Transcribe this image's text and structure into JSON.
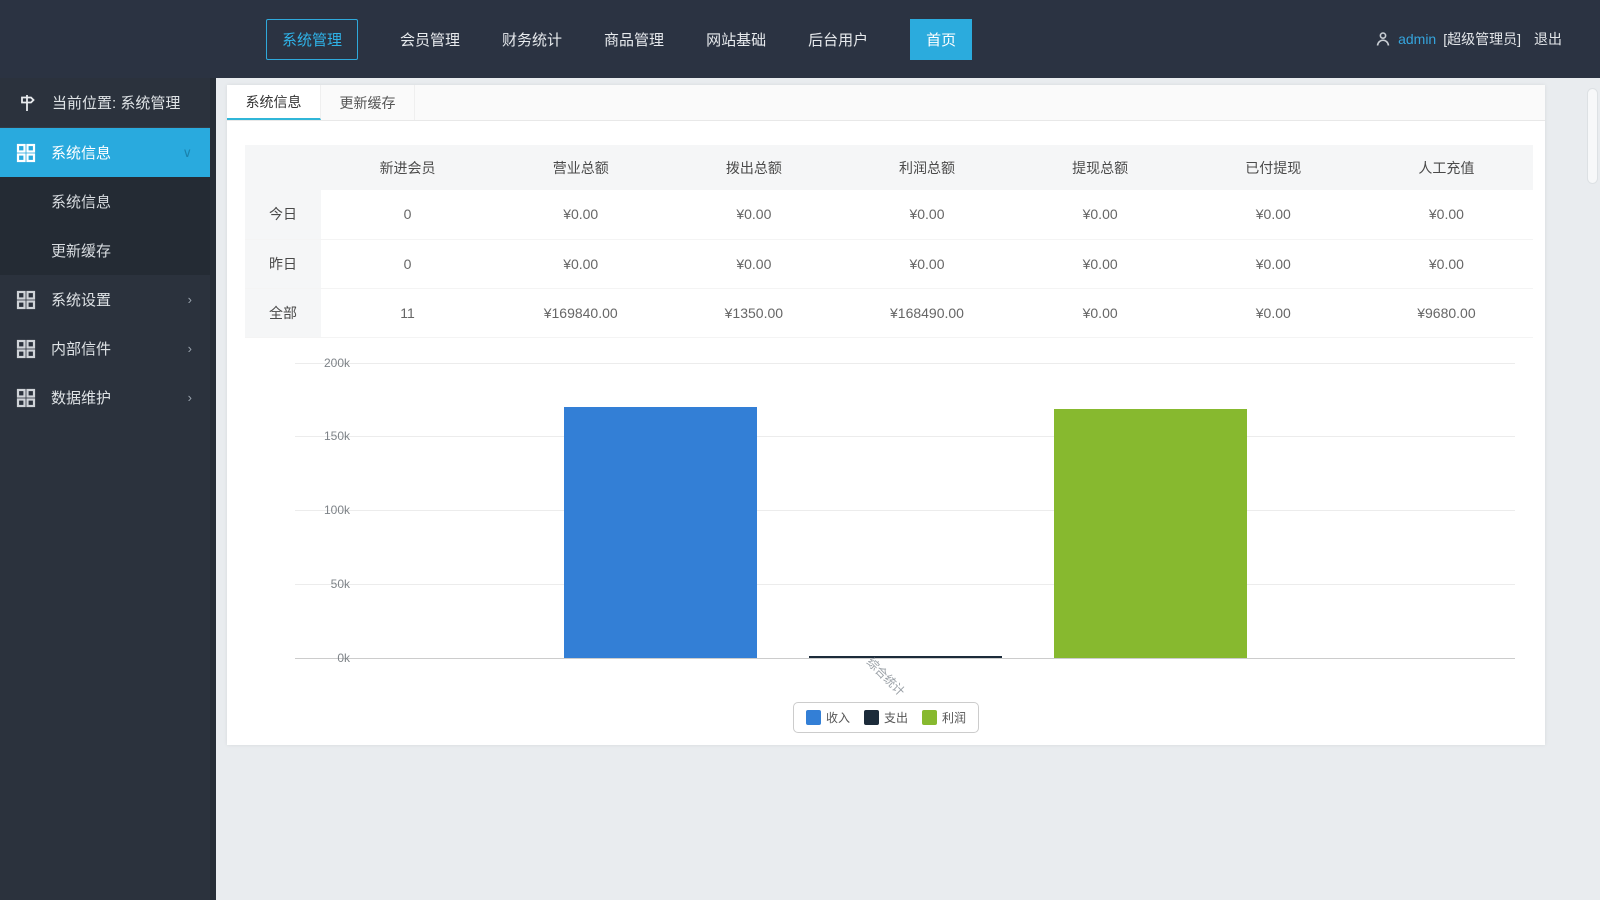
{
  "navbar": {
    "items": [
      {
        "label": "系统管理",
        "active": true
      },
      {
        "label": "会员管理"
      },
      {
        "label": "财务统计"
      },
      {
        "label": "商品管理"
      },
      {
        "label": "网站基础"
      },
      {
        "label": "后台用户"
      }
    ],
    "home_button": "首页",
    "user": {
      "name": "admin",
      "role": "[超级管理员]",
      "logout": "退出"
    }
  },
  "sidebar": {
    "location_label": "当前位置: 系统管理",
    "groups": [
      {
        "label": "系统信息",
        "expanded": true,
        "children": [
          "系统信息",
          "更新缓存"
        ]
      },
      {
        "label": "系统设置"
      },
      {
        "label": "内部信件"
      },
      {
        "label": "数据维护"
      }
    ]
  },
  "main": {
    "tabs": [
      "系统信息",
      "更新缓存"
    ]
  },
  "table": {
    "headers": [
      "新进会员",
      "营业总额",
      "拨出总额",
      "利润总额",
      "提现总额",
      "已付提现",
      "人工充值"
    ],
    "rows": [
      {
        "label": "今日",
        "cells": [
          "0",
          "¥0.00",
          "¥0.00",
          "¥0.00",
          "¥0.00",
          "¥0.00",
          "¥0.00"
        ]
      },
      {
        "label": "昨日",
        "cells": [
          "0",
          "¥0.00",
          "¥0.00",
          "¥0.00",
          "¥0.00",
          "¥0.00",
          "¥0.00"
        ]
      },
      {
        "label": "全部",
        "cells": [
          "11",
          "¥169840.00",
          "¥1350.00",
          "¥168490.00",
          "¥0.00",
          "¥0.00",
          "¥9680.00"
        ]
      }
    ]
  },
  "chart_data": {
    "type": "bar",
    "categories": [
      "综合统计"
    ],
    "series": [
      {
        "name": "收入",
        "values": [
          169840
        ],
        "color": "#337fd6"
      },
      {
        "name": "支出",
        "values": [
          1350
        ],
        "color": "#1c2b3a"
      },
      {
        "name": "利润",
        "values": [
          168490
        ],
        "color": "#87b92f"
      }
    ],
    "ylim": [
      0,
      200000
    ],
    "yticks": [
      "200k",
      "150k",
      "100k",
      "50k",
      "0k"
    ],
    "grid": true,
    "legend_position": "bottom"
  },
  "colors": {
    "navbar_bg": "#2b3342",
    "sidebar_bg": "#2b323d",
    "accent_cyan": "#29aade",
    "content_bg": "#e9ecef"
  }
}
